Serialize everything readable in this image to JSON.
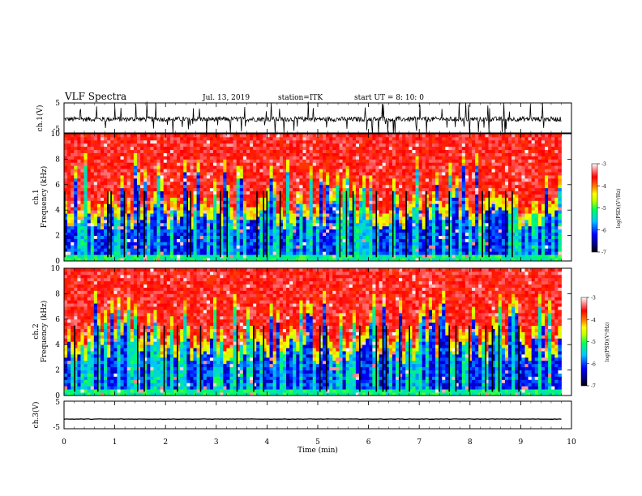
{
  "header": {
    "title": "VLF Spectra",
    "date": "Jul. 13, 2019",
    "station": "station=ITK",
    "start": "start UT = 8: 10: 0"
  },
  "chart_data": [
    {
      "type": "line",
      "panel": "channel-1-waveform",
      "ylabel": "ch.1(V)",
      "yticks": [
        "5",
        "-5"
      ],
      "ylim": [
        -5,
        5
      ],
      "xlim": [
        0,
        10
      ],
      "description_series": "noisy waveform centred near 0 V with frequent spikes of about ±5 V"
    },
    {
      "type": "heatmap",
      "panel": "channel-1-spectrogram",
      "ylabel": "ch.1\nFrequency (kHz)",
      "ylabel_lines": [
        "ch.1",
        "Frequency (kHz)"
      ],
      "yticks": [
        "0",
        "2",
        "4",
        "6",
        "8",
        "10"
      ],
      "ylim": [
        0,
        10
      ],
      "xlim": [
        0,
        9.8
      ],
      "colorbar": {
        "label": "log(PSD)(V²/Hz)",
        "range": [
          -7,
          -3
        ],
        "ticks": [
          "-3",
          "-4",
          "-5",
          "-6",
          "-7"
        ]
      }
    },
    {
      "type": "heatmap",
      "panel": "channel-2-spectrogram",
      "ylabel_lines": [
        "ch.2",
        "Frequency (kHz)"
      ],
      "yticks": [
        "0",
        "2",
        "4",
        "6",
        "8",
        "10"
      ],
      "ylim": [
        0,
        10
      ],
      "xlim": [
        0,
        9.8
      ],
      "colorbar": {
        "label": "log(PSD)(V²/Hz)",
        "range": [
          -7,
          -3
        ],
        "ticks": [
          "-3",
          "-4",
          "-5",
          "-6",
          "-7"
        ]
      }
    },
    {
      "type": "line",
      "panel": "channel-3-waveform",
      "ylabel": "ch.3(V)",
      "yticks": [
        "5",
        "-5"
      ],
      "ylim": [
        -5,
        5
      ],
      "xlim": [
        0,
        10
      ],
      "approx_level": -1.5
    }
  ],
  "xaxis": {
    "label": "Time (min)",
    "ticks": [
      "0",
      "1",
      "2",
      "3",
      "4",
      "5",
      "6",
      "7",
      "8",
      "9",
      "10"
    ],
    "range": [
      0,
      10
    ]
  },
  "colors": {
    "palette": [
      "#00007a",
      "#0000ff",
      "#00c8ff",
      "#00ff80",
      "#c0ff00",
      "#ffff00",
      "#ff8000",
      "#ff0000",
      "#ffffff"
    ]
  }
}
